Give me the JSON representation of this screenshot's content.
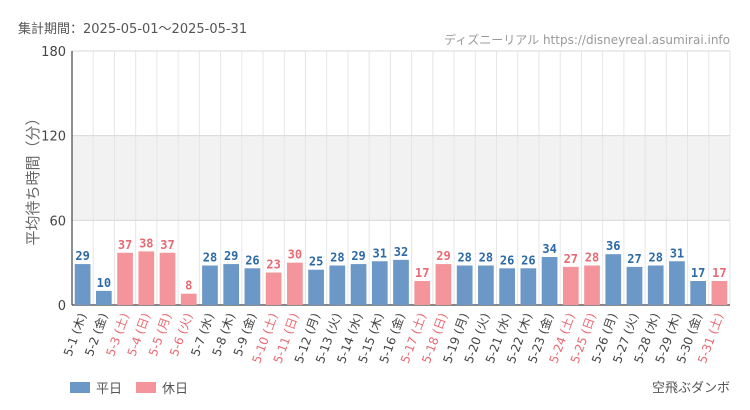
{
  "header": {
    "period_label": "集計期間：2025-05-01～2025-05-31",
    "source": "ディズニーリアル https://disneyreal.asumirai.info"
  },
  "footer": {
    "attraction": "空飛ぶダンボ"
  },
  "colors": {
    "weekday": "#6b98c6",
    "holiday": "#f4959b",
    "weekday_text": "#2d6aa6",
    "holiday_text": "#e86a72",
    "band": "#f2f2f2",
    "grid": "#e6e6e6"
  },
  "chart_data": {
    "type": "bar",
    "ylabel": "平均待ち時間（分）",
    "ylim": [
      0,
      180
    ],
    "yticks": [
      0,
      60,
      120,
      180
    ],
    "categories": [
      "5-1 (木)",
      "5-2 (金)",
      "5-3 (土)",
      "5-4 (日)",
      "5-5 (月)",
      "5-6 (火)",
      "5-7 (水)",
      "5-8 (木)",
      "5-9 (金)",
      "5-10 (土)",
      "5-11 (日)",
      "5-12 (月)",
      "5-13 (火)",
      "5-14 (水)",
      "5-15 (木)",
      "5-16 (金)",
      "5-17 (土)",
      "5-18 (日)",
      "5-19 (月)",
      "5-20 (火)",
      "5-21 (水)",
      "5-22 (木)",
      "5-23 (金)",
      "5-24 (土)",
      "5-25 (日)",
      "5-26 (月)",
      "5-27 (火)",
      "5-28 (水)",
      "5-29 (木)",
      "5-30 (金)",
      "5-31 (土)"
    ],
    "values": [
      29,
      10,
      37,
      38,
      37,
      8,
      28,
      29,
      26,
      23,
      30,
      25,
      28,
      29,
      31,
      32,
      17,
      29,
      28,
      28,
      26,
      26,
      34,
      27,
      28,
      36,
      27,
      28,
      31,
      17,
      17
    ],
    "day_type": [
      "平日",
      "平日",
      "休日",
      "休日",
      "休日",
      "休日",
      "平日",
      "平日",
      "平日",
      "休日",
      "休日",
      "平日",
      "平日",
      "平日",
      "平日",
      "平日",
      "休日",
      "休日",
      "平日",
      "平日",
      "平日",
      "平日",
      "平日",
      "休日",
      "休日",
      "平日",
      "平日",
      "平日",
      "平日",
      "平日",
      "休日"
    ],
    "legend": [
      {
        "label": "平日",
        "color": "#6b98c6"
      },
      {
        "label": "休日",
        "color": "#f4959b"
      }
    ],
    "bands": [
      {
        "from": 60,
        "to": 120,
        "color": "#f2f2f2"
      }
    ],
    "grid": true
  }
}
